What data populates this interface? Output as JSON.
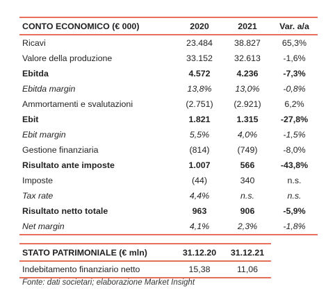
{
  "income": {
    "header": [
      "CONTO ECONOMICO (€ 000)",
      "2020",
      "2021",
      "Var. a/a"
    ],
    "rows": [
      {
        "label": "Ricavi",
        "v2020": "23.484",
        "v2021": "38.827",
        "var": "65,3%",
        "style": ""
      },
      {
        "label": "Valore della produzione",
        "v2020": "33.152",
        "v2021": "32.613",
        "var": "-1,6%",
        "style": ""
      },
      {
        "label": "Ebitda",
        "v2020": "4.572",
        "v2021": "4.236",
        "var": "-7,3%",
        "style": "bold"
      },
      {
        "label": "Ebitda margin",
        "v2020": "13,8%",
        "v2021": "13,0%",
        "var": "-0,8%",
        "style": "ital"
      },
      {
        "label": "Ammortamenti e svalutazioni",
        "v2020": "(2.751)",
        "v2021": "(2.921)",
        "var": "6,2%",
        "style": ""
      },
      {
        "label": "Ebit",
        "v2020": "1.821",
        "v2021": "1.315",
        "var": "-27,8%",
        "style": "bold"
      },
      {
        "label": "Ebit margin",
        "v2020": "5,5%",
        "v2021": "4,0%",
        "var": "-1,5%",
        "style": "ital"
      },
      {
        "label": "Gestione finanziaria",
        "v2020": "(814)",
        "v2021": "(749)",
        "var": "-8,0%",
        "style": ""
      },
      {
        "label": "Risultato ante imposte",
        "v2020": "1.007",
        "v2021": "566",
        "var": "-43,8%",
        "style": "bold"
      },
      {
        "label": "Imposte",
        "v2020": "(44)",
        "v2021": "340",
        "var": "n.s.",
        "style": ""
      },
      {
        "label": "Tax rate",
        "v2020": "4,4%",
        "v2021": "n.s.",
        "var": "n.s.",
        "style": "ital"
      },
      {
        "label": "Risultato netto totale",
        "v2020": "963",
        "v2021": "906",
        "var": "-5,9%",
        "style": "bold"
      },
      {
        "label": "Net margin",
        "v2020": "4,1%",
        "v2021": "2,3%",
        "var": "-1,8%",
        "style": "ital"
      }
    ]
  },
  "balance": {
    "header": [
      "STATO PATRIMONIALE (€ mln)",
      "31.12.20",
      "31.12.21"
    ],
    "rows": [
      {
        "label": "Indebitamento finanziario netto",
        "v2020": "15,38",
        "v2021": "11,06"
      }
    ]
  },
  "source": "Fonte: dati societari; elaborazione Market Insight",
  "colors": {
    "accent_rule": "#e8705a"
  }
}
